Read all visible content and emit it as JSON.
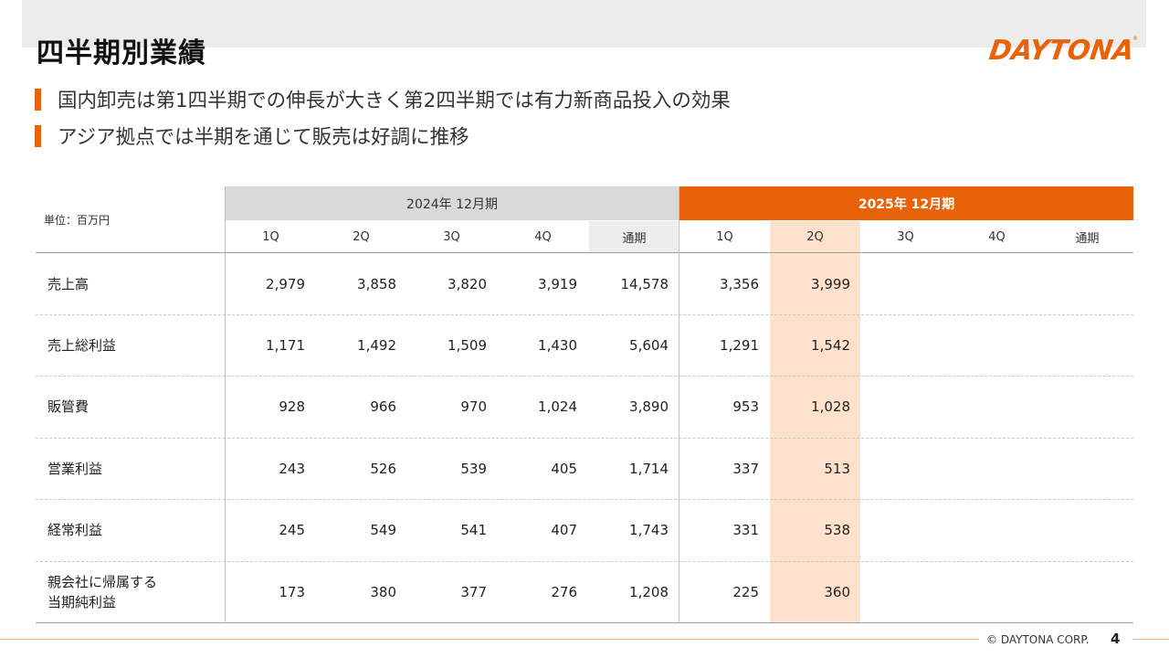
{
  "title": "四半期別業績",
  "brand": {
    "logo_text": "DAYTONA",
    "accent_color": "#e8620a"
  },
  "bullets": [
    "国内卸売は第1四半期での伸長が大きく第2四半期では有力新商品投入の効果",
    "アジア拠点では半期を通じて販売は好調に推移"
  ],
  "table": {
    "unit_label": "単位：百万円",
    "period_2024": "2024年 12月期",
    "period_2025": "2025年 12月期",
    "columns_2024": [
      "1Q",
      "2Q",
      "3Q",
      "4Q",
      "通期"
    ],
    "columns_2025": [
      "1Q",
      "2Q",
      "3Q",
      "4Q",
      "通期"
    ],
    "rows": [
      {
        "label": "売上高",
        "v2024": [
          "2,979",
          "3,858",
          "3,820",
          "3,919",
          "14,578"
        ],
        "v2025": [
          "3,356",
          "3,999"
        ]
      },
      {
        "label": "売上総利益",
        "v2024": [
          "1,171",
          "1,492",
          "1,509",
          "1,430",
          "5,604"
        ],
        "v2025": [
          "1,291",
          "1,542"
        ]
      },
      {
        "label": "販管費",
        "v2024": [
          "928",
          "966",
          "970",
          "1,024",
          "3,890"
        ],
        "v2025": [
          "953",
          "1,028"
        ]
      },
      {
        "label": "営業利益",
        "v2024": [
          "243",
          "526",
          "539",
          "405",
          "1,714"
        ],
        "v2025": [
          "337",
          "513"
        ]
      },
      {
        "label": "経常利益",
        "v2024": [
          "245",
          "549",
          "541",
          "407",
          "1,743"
        ],
        "v2025": [
          "331",
          "538"
        ]
      },
      {
        "label_line1": "親会社に帰属する",
        "label_line2": "当期純利益",
        "v2024": [
          "173",
          "380",
          "377",
          "276",
          "1,208"
        ],
        "v2025": [
          "225",
          "360"
        ]
      }
    ]
  },
  "footer": {
    "copyright": "© DAYTONA CORP.",
    "page_number": "4"
  }
}
